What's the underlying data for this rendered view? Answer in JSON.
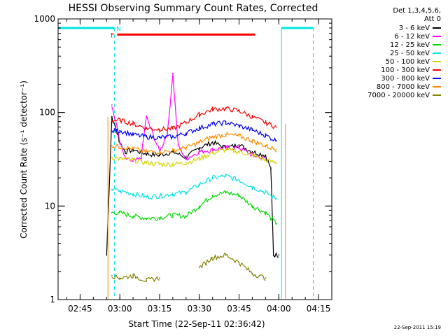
{
  "chart_data": {
    "type": "line",
    "title": "HESSI Observing Summary Count Rates, Corrected",
    "xlabel": "Start Time (22-Sep-11 02:36:42)",
    "ylabel": "Corrected Count Rate (s⁻¹ detector⁻¹)",
    "ylog": true,
    "ylim": [
      1,
      1000
    ],
    "y_ticks": [
      "1",
      "10",
      "100",
      "1000"
    ],
    "xlim": [
      "02:36:42",
      "04:20:00"
    ],
    "x_ticks": [
      "02:45",
      "03:00",
      "03:15",
      "03:30",
      "03:45",
      "04:00",
      "04:15"
    ],
    "legend": {
      "position": "right",
      "header": [
        "Det 1,3,4,5,6,",
        "Att 0"
      ]
    },
    "series": [
      {
        "name": "3 - 6 keV",
        "color": "#000000",
        "x": [
          "02:45",
          "02:55",
          "02:57",
          "02:59",
          "03:00",
          "03:02",
          "03:05",
          "03:10",
          "03:15",
          "03:20",
          "03:25",
          "03:30",
          "03:35",
          "03:40",
          "03:45",
          "03:50",
          "03:55",
          "03:57",
          "03:58",
          "04:00",
          "04:02"
        ],
        "values": [
          null,
          3,
          90,
          60,
          48,
          38,
          40,
          36,
          35,
          38,
          33,
          42,
          48,
          42,
          45,
          38,
          35,
          25,
          3,
          3,
          null
        ]
      },
      {
        "name": "6 - 12 keV",
        "color": "#ff00ff",
        "x": [
          "02:55",
          "02:57",
          "02:59",
          "03:00",
          "03:02",
          "03:05",
          "03:08",
          "03:10",
          "03:15",
          "03:18",
          "03:20",
          "03:22",
          "03:25",
          "03:30",
          "03:35",
          "03:40",
          "03:45",
          "03:50",
          "03:55",
          "03:57"
        ],
        "values": [
          null,
          120,
          70,
          48,
          32,
          30,
          32,
          90,
          38,
          60,
          260,
          45,
          32,
          38,
          40,
          42,
          42,
          35,
          32,
          null
        ]
      },
      {
        "name": "12 - 25 keV",
        "color": "#00dd00",
        "x": [
          "02:55",
          "02:57",
          "03:00",
          "03:05",
          "03:10",
          "03:15",
          "03:20",
          "03:25",
          "03:30",
          "03:35",
          "03:40",
          "03:45",
          "03:50",
          "03:55",
          "03:59"
        ],
        "values": [
          null,
          8.5,
          8.5,
          7.8,
          7.4,
          7.5,
          8.0,
          7.8,
          10,
          13,
          14,
          13,
          10,
          8.5,
          6.5
        ]
      },
      {
        "name": "25 - 50 keV",
        "color": "#00e5e5",
        "x": [
          "02:55",
          "02:57",
          "03:00",
          "03:05",
          "03:10",
          "03:15",
          "03:20",
          "03:25",
          "03:30",
          "03:35",
          "03:40",
          "03:45",
          "03:50",
          "03:55",
          "03:59"
        ],
        "values": [
          null,
          15,
          14.5,
          13.5,
          12.5,
          12.8,
          13.5,
          14,
          17,
          20,
          21,
          19,
          16,
          14,
          12
        ]
      },
      {
        "name": "50 - 100 keV",
        "color": "#d4d400",
        "x": [
          "02:55",
          "02:57",
          "03:00",
          "03:05",
          "03:10",
          "03:15",
          "03:20",
          "03:25",
          "03:30",
          "03:35",
          "03:40",
          "03:45",
          "03:50",
          "03:55",
          "03:59"
        ],
        "values": [
          null,
          33,
          32,
          31,
          29,
          28,
          28,
          29,
          32,
          37,
          40,
          38,
          35,
          31,
          29
        ]
      },
      {
        "name": "100 - 300 keV",
        "color": "#ff0000",
        "x": [
          "02:55",
          "02:57",
          "03:00",
          "03:05",
          "03:10",
          "03:15",
          "03:20",
          "03:25",
          "03:30",
          "03:35",
          "03:40",
          "03:45",
          "03:50",
          "03:55",
          "03:59"
        ],
        "values": [
          null,
          82,
          83,
          76,
          68,
          66,
          67,
          78,
          95,
          108,
          110,
          104,
          90,
          78,
          70
        ]
      },
      {
        "name": "300 - 800 keV",
        "color": "#0000ff",
        "x": [
          "02:55",
          "02:57",
          "03:00",
          "03:05",
          "03:10",
          "03:15",
          "03:20",
          "03:25",
          "03:30",
          "03:35",
          "03:40",
          "03:45",
          "03:50",
          "03:55",
          "03:59"
        ],
        "values": [
          null,
          63,
          64,
          58,
          55,
          54,
          55,
          60,
          68,
          75,
          78,
          72,
          65,
          57,
          50
        ]
      },
      {
        "name": "800 - 7000 keV",
        "color": "#ff8c00",
        "x": [
          "02:55",
          "02:57",
          "03:00",
          "03:05",
          "03:10",
          "03:15",
          "03:20",
          "03:25",
          "03:30",
          "03:35",
          "03:40",
          "03:45",
          "03:50",
          "03:55",
          "03:59"
        ],
        "values": [
          null,
          44,
          43,
          41,
          38,
          38,
          39,
          42,
          48,
          55,
          58,
          56,
          50,
          44,
          40
        ]
      },
      {
        "name": "7000 - 20000 keV",
        "color": "#808000",
        "x": [
          "02:55",
          "02:57",
          "03:00",
          "03:05",
          "03:10",
          "03:15",
          "03:20",
          "03:25",
          "03:30",
          "03:35",
          "03:40",
          "03:45",
          "03:50",
          "03:55",
          "03:57"
        ],
        "values": [
          null,
          1.8,
          1.7,
          1.8,
          1.6,
          1.7,
          null,
          null,
          2.2,
          2.8,
          3.0,
          2.5,
          1.9,
          1.7,
          null
        ]
      }
    ],
    "markers": [
      {
        "label": "F",
        "color": "#ff0000"
      },
      {
        "label": "N",
        "color": "#00e5e5"
      }
    ]
  },
  "footer": {
    "timestamp": "22-Sep-2011 15:19"
  }
}
